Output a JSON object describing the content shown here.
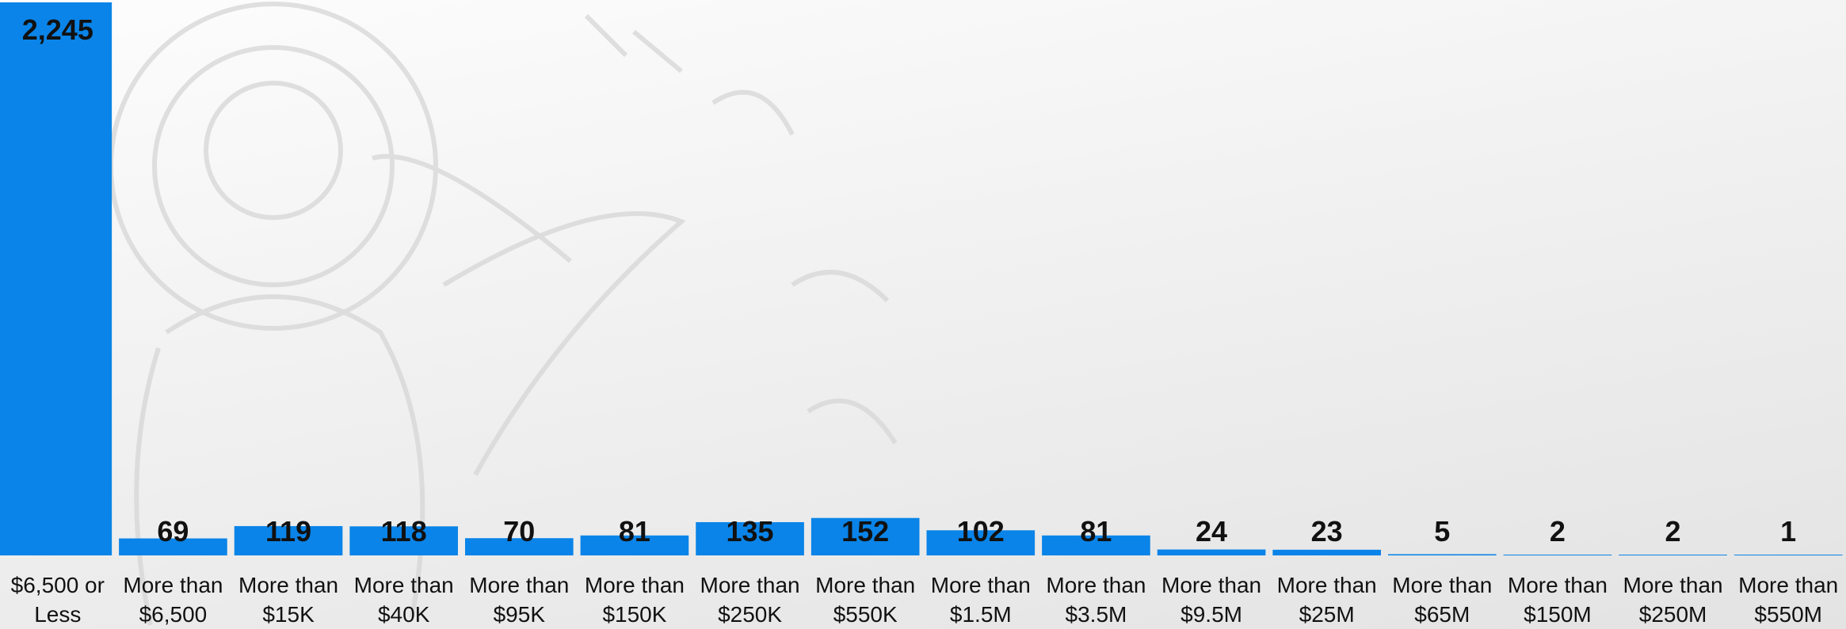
{
  "chart_data": {
    "type": "bar",
    "categories": [
      "$6,500 or Less",
      "More than $6,500",
      "More than $15K",
      "More than $40K",
      "More than $95K",
      "More than $150K",
      "More than $250K",
      "More than $550K",
      "More than $1.5M",
      "More than $3.5M",
      "More than $9.5M",
      "More than $25M",
      "More than $65M",
      "More than $150M",
      "More than $250M",
      "More than $550M"
    ],
    "values": [
      2245,
      69,
      119,
      118,
      70,
      81,
      135,
      152,
      102,
      81,
      24,
      23,
      5,
      2,
      2,
      1
    ],
    "value_labels": [
      "2,245",
      "69",
      "119",
      "118",
      "70",
      "81",
      "135",
      "152",
      "102",
      "81",
      "24",
      "23",
      "5",
      "2",
      "2",
      "1"
    ],
    "title": "",
    "xlabel": "",
    "ylabel": "",
    "ylim": [
      0,
      2245
    ],
    "grid": false,
    "legend": "none",
    "bar_color": "#0a84e8",
    "background_watermark": "seal-watermark"
  }
}
